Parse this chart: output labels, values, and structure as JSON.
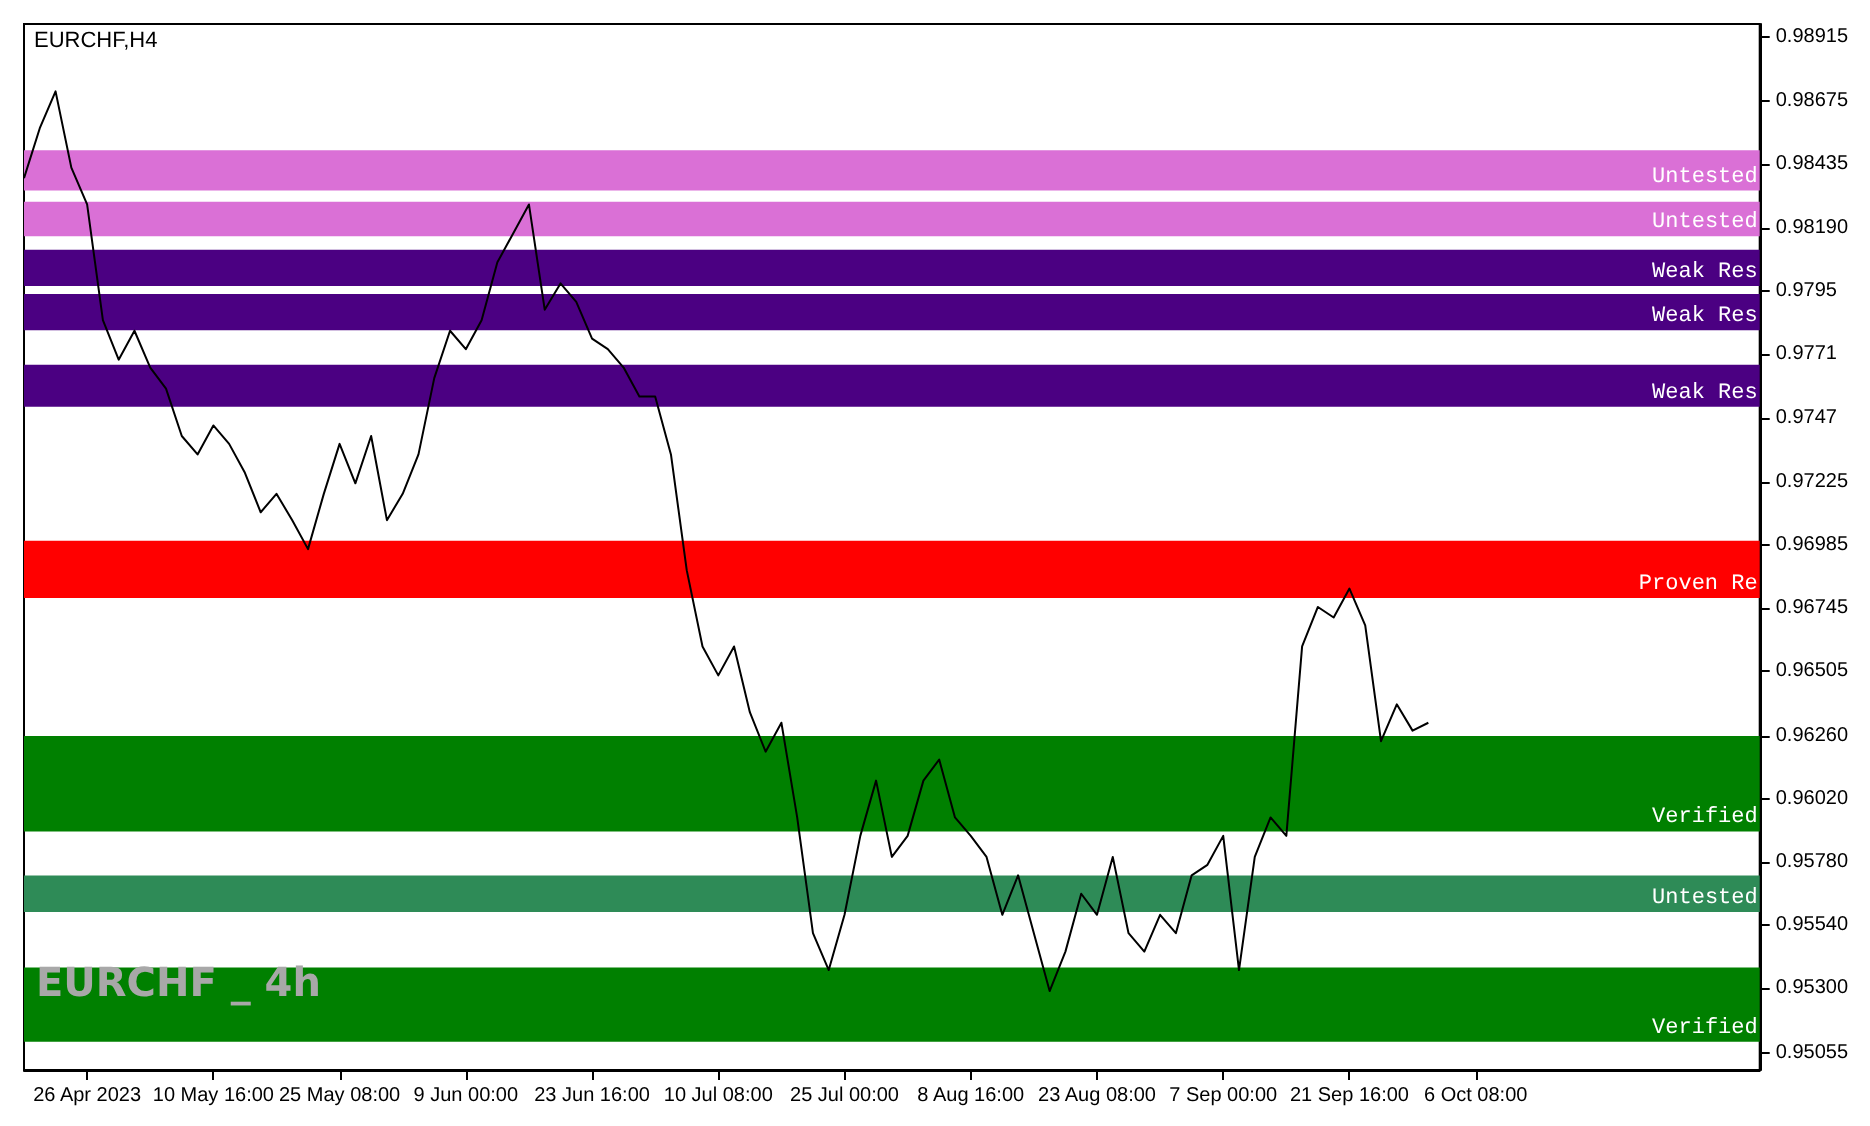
{
  "chart_data": {
    "type": "line",
    "title": "EURCHF,H4",
    "annotations": [
      "EURCHF _ 4h"
    ],
    "categories": [
      null,
      null,
      null,
      null,
      "26 Apr 2023",
      null,
      null,
      null,
      null,
      null,
      null,
      null,
      "10 May 16:00",
      null,
      null,
      null,
      null,
      null,
      null,
      null,
      "25 May 08:00",
      null,
      null,
      null,
      null,
      null,
      null,
      null,
      "9 Jun 00:00",
      null,
      null,
      null,
      null,
      null,
      null,
      null,
      "23 Jun 16:00",
      null,
      null,
      null,
      null,
      null,
      null,
      null,
      "10 Jul 08:00",
      null,
      null,
      null,
      null,
      null,
      null,
      null,
      "25 Jul 00:00",
      null,
      null,
      null,
      null,
      null,
      null,
      null,
      "8 Aug 16:00",
      null,
      null,
      null,
      null,
      null,
      null,
      null,
      "23 Aug 08:00",
      null,
      null,
      null,
      null,
      null,
      null,
      null,
      "7 Sep 00:00",
      null,
      null,
      null,
      null,
      null,
      null,
      null,
      "21 Sep 16:00",
      null,
      null,
      null,
      null,
      null,
      null,
      null,
      "6 Oct 08:00",
      null,
      null,
      null,
      null,
      null,
      null,
      null,
      null,
      null,
      null,
      null,
      null,
      null,
      null,
      null,
      null,
      null,
      null
    ],
    "series": [
      {
        "color": "#000000",
        "values": [
          0.9838,
          0.9857,
          0.9871,
          0.9842,
          0.9828,
          0.9784,
          0.9769,
          0.978,
          0.9766,
          0.9758,
          0.974,
          0.9733,
          0.9744,
          0.9737,
          0.9726,
          0.9711,
          0.9718,
          0.9708,
          0.9697,
          0.9718,
          0.9737,
          0.9722,
          0.974,
          0.9708,
          0.9718,
          0.9733,
          0.9762,
          0.978,
          0.9773,
          0.9784,
          0.9806,
          0.9817,
          0.9828,
          0.9788,
          0.9798,
          0.9791,
          0.9777,
          0.9773,
          0.9766,
          0.9755,
          0.9755,
          0.9733,
          0.9689,
          0.966,
          0.9649,
          0.966,
          0.9635,
          0.962,
          0.9631,
          0.9595,
          0.9551,
          0.9537,
          0.9558,
          0.9588,
          0.9609,
          0.958,
          0.9588,
          0.9609,
          0.9617,
          0.9595,
          0.9588,
          0.958,
          0.9558,
          0.9573,
          0.9551,
          0.9529,
          0.9544,
          0.9566,
          0.9558,
          0.958,
          0.9551,
          0.9544,
          0.9558,
          0.9551,
          0.9573,
          0.9577,
          0.9588,
          0.9537,
          0.958,
          0.9595,
          0.9588,
          0.966,
          0.9675,
          0.9671,
          0.9682,
          0.9668,
          0.9624,
          0.9638,
          0.9628,
          0.9631,
          null,
          null,
          null,
          null,
          null,
          null,
          null,
          null,
          null,
          null,
          null,
          null,
          null,
          null,
          null,
          null,
          null,
          null,
          null,
          null,
          null
        ]
      }
    ],
    "ylim": [
      0.9499,
      0.98966
    ],
    "yticks": [
      0.98915,
      0.98675,
      0.98435,
      {
        "value": 0.9819,
        "label": "0.98190"
      },
      0.9795,
      0.9771,
      0.9747,
      0.97225,
      0.96985,
      0.96745,
      0.96505,
      {
        "value": 0.9626,
        "label": "0.96260"
      },
      {
        "value": 0.9602,
        "label": "0.96020"
      },
      {
        "value": 0.9578,
        "label": "0.95780"
      },
      {
        "value": 0.9554,
        "label": "0.95540"
      },
      {
        "value": 0.953,
        "label": "0.95300"
      },
      0.95055
    ],
    "bands": [
      {
        "axis": "y",
        "from": 0.98333,
        "to": 0.98486,
        "label": "Untested",
        "color": "#da70d6"
      },
      {
        "axis": "y",
        "from": 0.98159,
        "to": 0.9829,
        "label": "Untested",
        "color": "#da70d6"
      },
      {
        "axis": "y",
        "from": 0.9797,
        "to": 0.98108,
        "label": "Weak Res",
        "color": "#4b0082"
      },
      {
        "axis": "y",
        "from": 0.97802,
        "to": 0.9794,
        "label": "Weak Res",
        "color": "#4b0082"
      },
      {
        "axis": "y",
        "from": 0.97511,
        "to": 0.97671,
        "label": "Weak Res",
        "color": "#4b0082"
      },
      {
        "axis": "y",
        "from": 0.96784,
        "to": 0.97002,
        "label": "Proven Re",
        "color": "#ff0000"
      },
      {
        "axis": "y",
        "from": 0.95897,
        "to": 0.9626,
        "label": "Verified",
        "color": "#008000"
      },
      {
        "axis": "y",
        "from": 0.95591,
        "to": 0.95729,
        "label": "Untested",
        "color": "#2e8b57"
      },
      {
        "axis": "y",
        "from": 0.95097,
        "to": 0.9538,
        "label": "Verified",
        "color": "#008000"
      }
    ]
  }
}
